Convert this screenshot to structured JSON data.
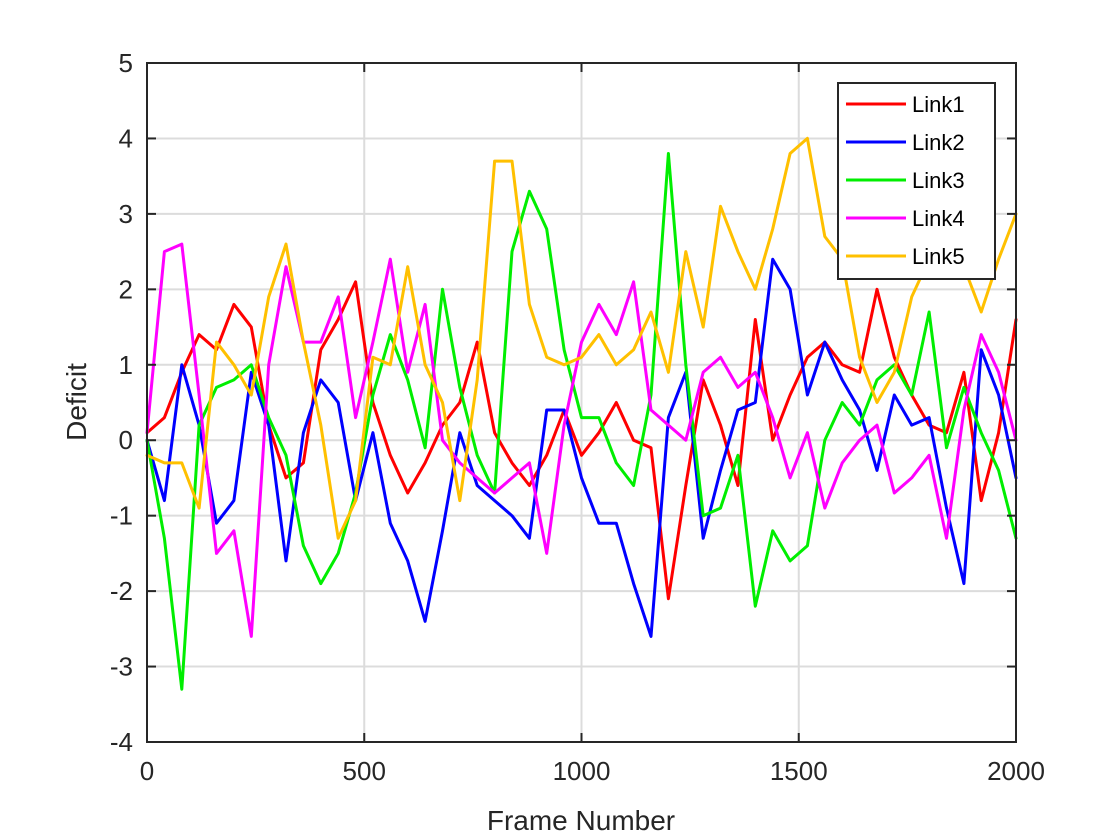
{
  "chart_data": {
    "type": "line",
    "title": "",
    "xlabel": "Frame Number",
    "ylabel": "Deficit",
    "xlim": [
      0,
      2000
    ],
    "ylim": [
      -4,
      5
    ],
    "xticks": [
      0,
      500,
      1000,
      1500,
      2000
    ],
    "yticks": [
      -4,
      -3,
      -2,
      -1,
      0,
      1,
      2,
      3,
      4,
      5
    ],
    "xtick_labels": [
      "0",
      "500",
      "1000",
      "1500",
      "2000"
    ],
    "ytick_labels": [
      "-4",
      "-3",
      "-2",
      "-1",
      "0",
      "1",
      "2",
      "3",
      "4",
      "5"
    ],
    "grid": true,
    "legend_position": "top-right",
    "x": [
      0,
      40,
      80,
      120,
      160,
      200,
      240,
      280,
      320,
      360,
      400,
      440,
      480,
      520,
      560,
      600,
      640,
      680,
      720,
      760,
      800,
      840,
      880,
      920,
      960,
      1000,
      1040,
      1080,
      1120,
      1160,
      1200,
      1240,
      1280,
      1320,
      1360,
      1400,
      1440,
      1480,
      1520,
      1560,
      1600,
      1640,
      1680,
      1720,
      1760,
      1800,
      1840,
      1880,
      1920,
      1960,
      2000
    ],
    "series": [
      {
        "name": "Link1",
        "color": "#ff0000",
        "values": [
          0.1,
          0.3,
          0.9,
          1.4,
          1.2,
          1.8,
          1.5,
          0.2,
          -0.5,
          -0.3,
          1.2,
          1.6,
          2.1,
          0.5,
          -0.2,
          -0.7,
          -0.3,
          0.2,
          0.5,
          1.3,
          0.1,
          -0.3,
          -0.6,
          -0.2,
          0.4,
          -0.2,
          0.1,
          0.5,
          0.0,
          -0.1,
          -2.1,
          -0.6,
          0.8,
          0.2,
          -0.6,
          1.6,
          0.0,
          0.6,
          1.1,
          1.3,
          1.0,
          0.9,
          2.0,
          1.1,
          0.6,
          0.2,
          0.1,
          0.9,
          -0.8,
          0.1,
          1.6
        ]
      },
      {
        "name": "Link2",
        "color": "#0000ff",
        "values": [
          0.0,
          -0.8,
          1.0,
          0.2,
          -1.1,
          -0.8,
          0.9,
          0.2,
          -1.6,
          0.1,
          0.8,
          0.5,
          -0.8,
          0.1,
          -1.1,
          -1.6,
          -2.4,
          -1.2,
          0.1,
          -0.6,
          -0.8,
          -1.0,
          -1.3,
          0.4,
          0.4,
          -0.5,
          -1.1,
          -1.1,
          -1.9,
          -2.6,
          0.3,
          0.9,
          -1.3,
          -0.4,
          0.4,
          0.5,
          2.4,
          2.0,
          0.6,
          1.3,
          0.8,
          0.4,
          -0.4,
          0.6,
          0.2,
          0.3,
          -0.9,
          -1.9,
          1.2,
          0.6,
          -0.5
        ]
      },
      {
        "name": "Link3",
        "color": "#00ee00",
        "values": [
          0.0,
          -1.3,
          -3.3,
          0.2,
          0.7,
          0.8,
          1.0,
          0.3,
          -0.2,
          -1.4,
          -1.9,
          -1.5,
          -0.7,
          0.6,
          1.4,
          0.8,
          -0.1,
          2.0,
          0.7,
          -0.2,
          -0.7,
          2.5,
          3.3,
          2.8,
          1.2,
          0.3,
          0.3,
          -0.3,
          -0.6,
          0.6,
          3.8,
          1.0,
          -1.0,
          -0.9,
          -0.2,
          -2.2,
          -1.2,
          -1.6,
          -1.4,
          0.0,
          0.5,
          0.2,
          0.8,
          1.0,
          0.6,
          1.7,
          -0.1,
          0.7,
          0.1,
          -0.4,
          -1.3
        ]
      },
      {
        "name": "Link4",
        "color": "#ff00ff",
        "values": [
          0.1,
          2.5,
          2.6,
          0.6,
          -1.5,
          -1.2,
          -2.6,
          1.0,
          2.3,
          1.3,
          1.3,
          1.9,
          0.3,
          1.3,
          2.4,
          0.9,
          1.8,
          0.0,
          -0.3,
          -0.5,
          -0.7,
          -0.5,
          -0.3,
          -1.5,
          0.2,
          1.3,
          1.8,
          1.4,
          2.1,
          0.4,
          0.2,
          0.0,
          0.9,
          1.1,
          0.7,
          0.9,
          0.3,
          -0.5,
          0.1,
          -0.9,
          -0.3,
          0.0,
          0.2,
          -0.7,
          -0.5,
          -0.2,
          -1.3,
          0.4,
          1.4,
          0.9,
          0.0
        ]
      },
      {
        "name": "Link5",
        "color": "#ffc000",
        "values": [
          -0.2,
          -0.3,
          -0.3,
          -0.9,
          1.3,
          1.0,
          0.6,
          1.9,
          2.6,
          1.3,
          0.2,
          -1.3,
          -0.8,
          1.1,
          1.0,
          2.3,
          1.0,
          0.5,
          -0.8,
          0.8,
          3.7,
          3.7,
          1.8,
          1.1,
          1.0,
          1.1,
          1.4,
          1.0,
          1.2,
          1.7,
          0.9,
          2.5,
          1.5,
          3.1,
          2.5,
          2.0,
          2.8,
          3.8,
          4.0,
          2.7,
          2.4,
          1.1,
          0.5,
          0.9,
          1.9,
          2.4,
          3.3,
          2.3,
          1.7,
          2.4,
          3.0
        ]
      }
    ]
  }
}
